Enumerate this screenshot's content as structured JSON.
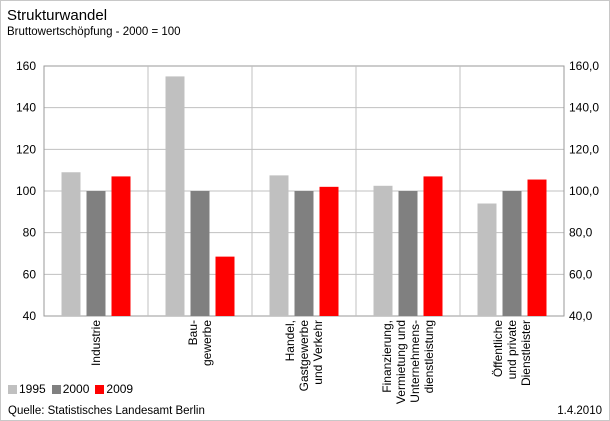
{
  "header": {
    "title": "Strukturwandel",
    "subtitle": "Bruttowertschöpfung - 2000 = 100"
  },
  "footer": {
    "source": "Quelle: Statistisches Landesamt Berlin",
    "date": "1.4.2010"
  },
  "chart_data": {
    "type": "bar",
    "categories": [
      [
        "Industrie"
      ],
      [
        "Bau-",
        "gewerbe"
      ],
      [
        "Handel,",
        "Gastgewerbe",
        "und Verkehr"
      ],
      [
        "Finanzierung,",
        "Vermietung und",
        "Unternehmens-",
        "dienstleistung"
      ],
      [
        "Öffentliche",
        "und private",
        "Dienstleister"
      ]
    ],
    "series": [
      {
        "name": "1995",
        "color": "#c0c0c0",
        "values": [
          109,
          155,
          107.5,
          102.5,
          94
        ]
      },
      {
        "name": "2000",
        "color": "#808080",
        "values": [
          100,
          100,
          100,
          100,
          100
        ]
      },
      {
        "name": "2009",
        "color": "#ff0000",
        "values": [
          107,
          68.5,
          102,
          107,
          105.5
        ]
      }
    ],
    "ylim": [
      40,
      160
    ],
    "yticks_left": [
      "40",
      "60",
      "80",
      "100",
      "120",
      "140",
      "160"
    ],
    "yticks_right": [
      "40,0",
      "60,0",
      "80,0",
      "100,0",
      "120,0",
      "140,0",
      "160,0"
    ],
    "grid": true,
    "legend_position": "bottom-left"
  }
}
